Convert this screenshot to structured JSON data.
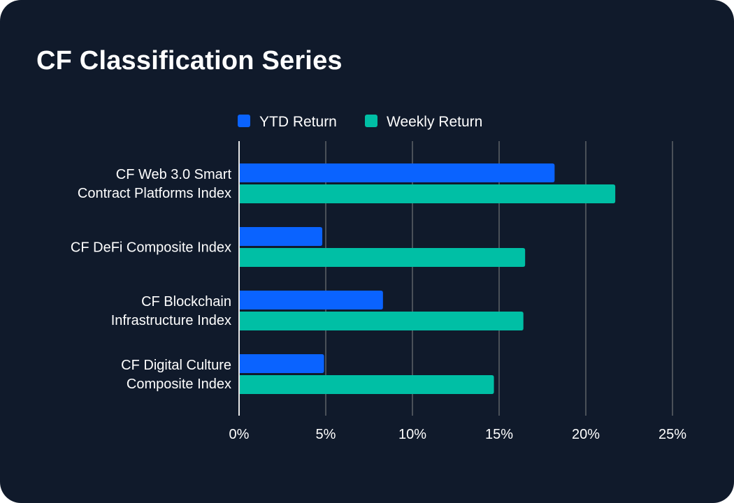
{
  "chart_data": {
    "type": "bar",
    "orientation": "horizontal",
    "title": "CF Classification Series",
    "categories": [
      [
        "CF Web 3.0 Smart",
        "Contract Platforms Index"
      ],
      [
        "CF DeFi Composite Index"
      ],
      [
        "CF Blockchain",
        "Infrastructure Index"
      ],
      [
        "CF Digital Culture",
        "Composite Index"
      ]
    ],
    "series": [
      {
        "name": "YTD Return",
        "color": "#0a63ff",
        "values": [
          18.2,
          4.8,
          8.3,
          4.9
        ]
      },
      {
        "name": "Weekly Return",
        "color": "#00bfa5",
        "values": [
          21.7,
          16.5,
          16.4,
          14.7
        ]
      }
    ],
    "xlim": [
      0,
      25
    ],
    "xticks": [
      0,
      5,
      10,
      15,
      20,
      25
    ],
    "xtick_labels": [
      "0%",
      "5%",
      "10%",
      "15%",
      "20%",
      "25%"
    ],
    "grid": true,
    "legend": "top-center",
    "xlabel": "",
    "ylabel": ""
  },
  "colors": {
    "background": "#101a2b",
    "grid": "#4a5058",
    "axis": "#e6e6e6",
    "text": "#ffffff"
  }
}
